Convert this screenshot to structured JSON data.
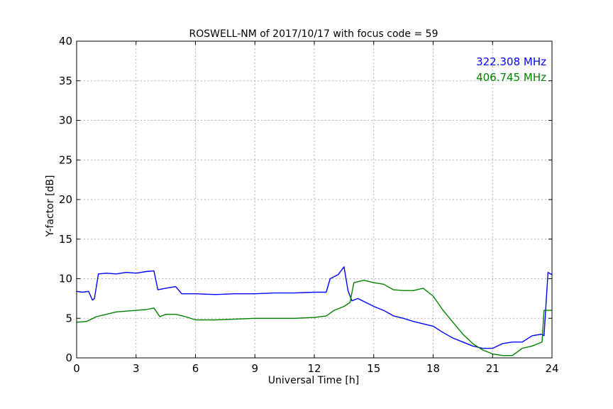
{
  "chart_data": {
    "type": "line",
    "title": "ROSWELL-NM of 2017/10/17 with focus code = 59",
    "xlabel": "Universal Time [h]",
    "ylabel": "Y-factor [dB]",
    "xlim": [
      0,
      24
    ],
    "ylim": [
      0,
      40
    ],
    "xticks": [
      0,
      3,
      6,
      9,
      12,
      15,
      18,
      21,
      24
    ],
    "yticks": [
      0,
      5,
      10,
      15,
      20,
      25,
      30,
      35,
      40
    ],
    "grid": true,
    "legend": "top-right",
    "series": [
      {
        "name": "322.308 MHz",
        "color": "#0000ff",
        "x": [
          0.0,
          0.3,
          0.6,
          0.8,
          0.9,
          1.1,
          1.5,
          2.0,
          2.5,
          3.0,
          3.5,
          3.9,
          4.1,
          4.5,
          5.0,
          5.3,
          6.0,
          7.0,
          8.0,
          9.0,
          10.0,
          11.0,
          12.0,
          12.6,
          12.8,
          13.2,
          13.5,
          13.7,
          13.9,
          14.2,
          14.6,
          15.0,
          15.5,
          16.0,
          16.5,
          17.0,
          17.5,
          18.0,
          18.5,
          19.0,
          19.5,
          20.0,
          20.5,
          21.0,
          21.5,
          22.0,
          22.5,
          23.0,
          23.5,
          23.6,
          23.8,
          24.0
        ],
        "y": [
          8.4,
          8.3,
          8.4,
          7.3,
          7.5,
          10.6,
          10.7,
          10.6,
          10.8,
          10.7,
          10.9,
          11.0,
          8.6,
          8.8,
          9.0,
          8.1,
          8.1,
          8.0,
          8.1,
          8.1,
          8.2,
          8.2,
          8.3,
          8.3,
          10.0,
          10.5,
          11.5,
          8.5,
          7.2,
          7.5,
          7.0,
          6.5,
          6.0,
          5.3,
          5.0,
          4.6,
          4.3,
          4.0,
          3.2,
          2.5,
          2.0,
          1.5,
          1.2,
          1.2,
          1.8,
          2.0,
          2.0,
          2.8,
          3.0,
          2.8,
          10.8,
          10.5
        ]
      },
      {
        "name": "406.745 MHz",
        "color": "#008000",
        "x": [
          0.0,
          0.5,
          1.0,
          1.5,
          2.0,
          2.5,
          3.0,
          3.5,
          3.9,
          4.2,
          4.5,
          5.0,
          5.5,
          6.0,
          7.0,
          8.0,
          9.0,
          10.0,
          11.0,
          12.0,
          12.6,
          13.0,
          13.5,
          13.8,
          14.0,
          14.5,
          15.0,
          15.5,
          16.0,
          16.5,
          17.0,
          17.5,
          18.0,
          18.5,
          19.0,
          19.5,
          20.0,
          20.5,
          21.0,
          21.5,
          22.0,
          22.5,
          23.0,
          23.5,
          23.6,
          24.0
        ],
        "y": [
          4.5,
          4.6,
          5.2,
          5.5,
          5.8,
          5.9,
          6.0,
          6.1,
          6.3,
          5.2,
          5.5,
          5.5,
          5.2,
          4.8,
          4.8,
          4.9,
          5.0,
          5.0,
          5.0,
          5.1,
          5.3,
          6.0,
          6.5,
          7.0,
          9.5,
          9.8,
          9.5,
          9.3,
          8.6,
          8.5,
          8.5,
          8.8,
          7.8,
          6.0,
          4.5,
          3.0,
          1.8,
          1.0,
          0.5,
          0.3,
          0.3,
          1.2,
          1.5,
          2.0,
          6.0,
          6.0
        ]
      }
    ]
  }
}
